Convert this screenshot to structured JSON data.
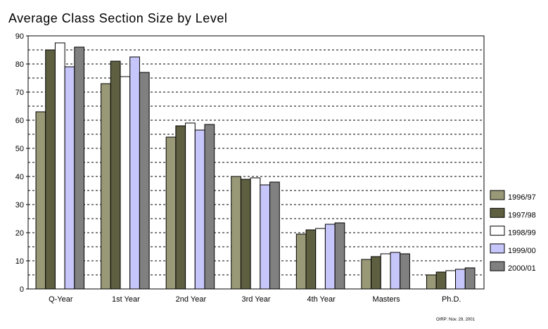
{
  "chart_data": {
    "type": "bar",
    "title": "Average Class Section Size by Level",
    "categories": [
      "Q-Year",
      "1st Year",
      "2nd Year",
      "3rd Year",
      "4th Year",
      "Masters",
      "Ph.D."
    ],
    "series": [
      {
        "name": "1996/97",
        "color": "#999977",
        "values": [
          63,
          73,
          54,
          40,
          19.5,
          10.5,
          5
        ]
      },
      {
        "name": "1997/98",
        "color": "#5e5e40",
        "values": [
          85,
          81,
          58,
          39,
          21,
          11.5,
          6
        ]
      },
      {
        "name": "1998/99",
        "color": "#ffffff",
        "values": [
          87.5,
          75.5,
          59,
          39.5,
          21.5,
          12.5,
          6.5
        ]
      },
      {
        "name": "1999/00",
        "color": "#c6c6fa",
        "values": [
          79,
          82.5,
          56.5,
          37,
          23,
          13,
          7
        ]
      },
      {
        "name": "2000/01",
        "color": "#808080",
        "values": [
          86,
          77,
          58.5,
          38,
          23.5,
          12.5,
          7.5
        ]
      }
    ],
    "ylim": [
      0,
      90
    ],
    "yticks": [
      0,
      10,
      20,
      30,
      40,
      50,
      60,
      70,
      80,
      90
    ],
    "grid": true,
    "legend": "right",
    "footnote": "OIRP: Nov. 29, 2001"
  }
}
